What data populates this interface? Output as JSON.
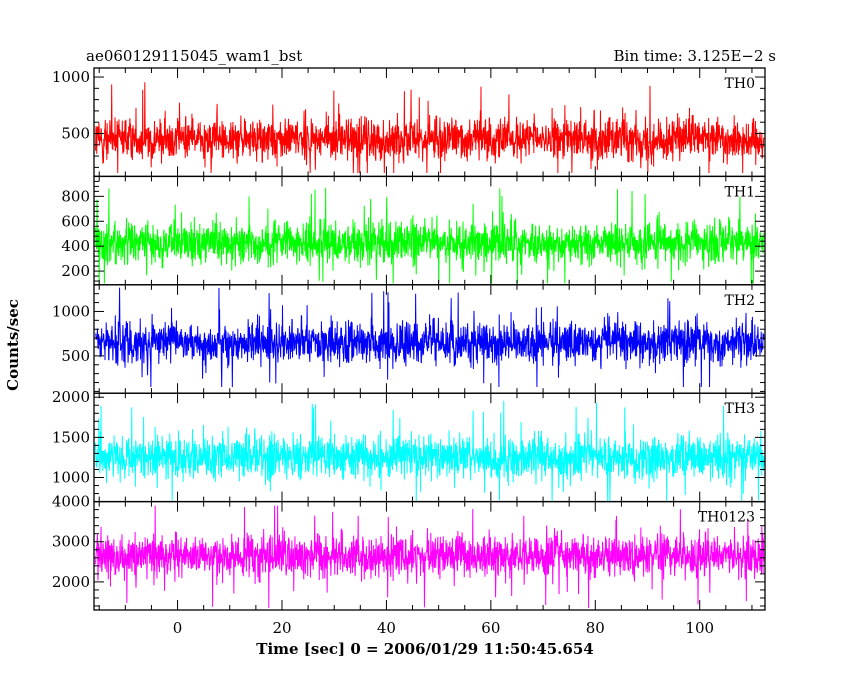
{
  "chart_data": {
    "type": "line",
    "title": "ae060129115045_wam1_bst",
    "bin_time_label": "Bin time: 3.125E−2 s",
    "xlabel": "Time [sec] 0 = 2006/01/29 11:50:45.654",
    "ylabel": "Counts/sec",
    "xlim": [
      -16,
      112.5
    ],
    "x_ticks": [
      0,
      20,
      40,
      60,
      80,
      100
    ],
    "x_tick_labels": [
      "0",
      "20",
      "40",
      "60",
      "80",
      "100"
    ],
    "grid": false,
    "panels": [
      {
        "label": "TH0",
        "color": "#ff0000",
        "ylim": [
          120,
          1080
        ],
        "yticks": [
          500,
          1000
        ],
        "ytick_labels": [
          "500",
          "1000"
        ],
        "mean": 450,
        "min": 150,
        "max": 1080
      },
      {
        "label": "TH1",
        "color": "#00ff00",
        "ylim": [
          90,
          960
        ],
        "yticks": [
          200,
          400,
          600,
          800
        ],
        "ytick_labels": [
          "200",
          "400",
          "600",
          "800"
        ],
        "mean": 430,
        "min": 100,
        "max": 900
      },
      {
        "label": "TH2",
        "color": "#0000ff",
        "ylim": [
          80,
          1300
        ],
        "yticks": [
          500,
          1000
        ],
        "ytick_labels": [
          "500",
          "1000"
        ],
        "mean": 650,
        "min": 150,
        "max": 1300
      },
      {
        "label": "TH3",
        "color": "#00ffff",
        "ylim": [
          700,
          2050
        ],
        "yticks": [
          1000,
          1500,
          2000
        ],
        "ytick_labels": [
          "1000",
          "1500",
          "2000"
        ],
        "mean": 1250,
        "min": 700,
        "max": 2000
      },
      {
        "label": "TH0123",
        "color": "#ff00ff",
        "ylim": [
          1300,
          4000
        ],
        "yticks": [
          2000,
          3000,
          4000
        ],
        "ytick_labels": [
          "2000",
          "3000",
          "4000"
        ],
        "mean": 2650,
        "min": 1350,
        "max": 3900
      }
    ]
  }
}
